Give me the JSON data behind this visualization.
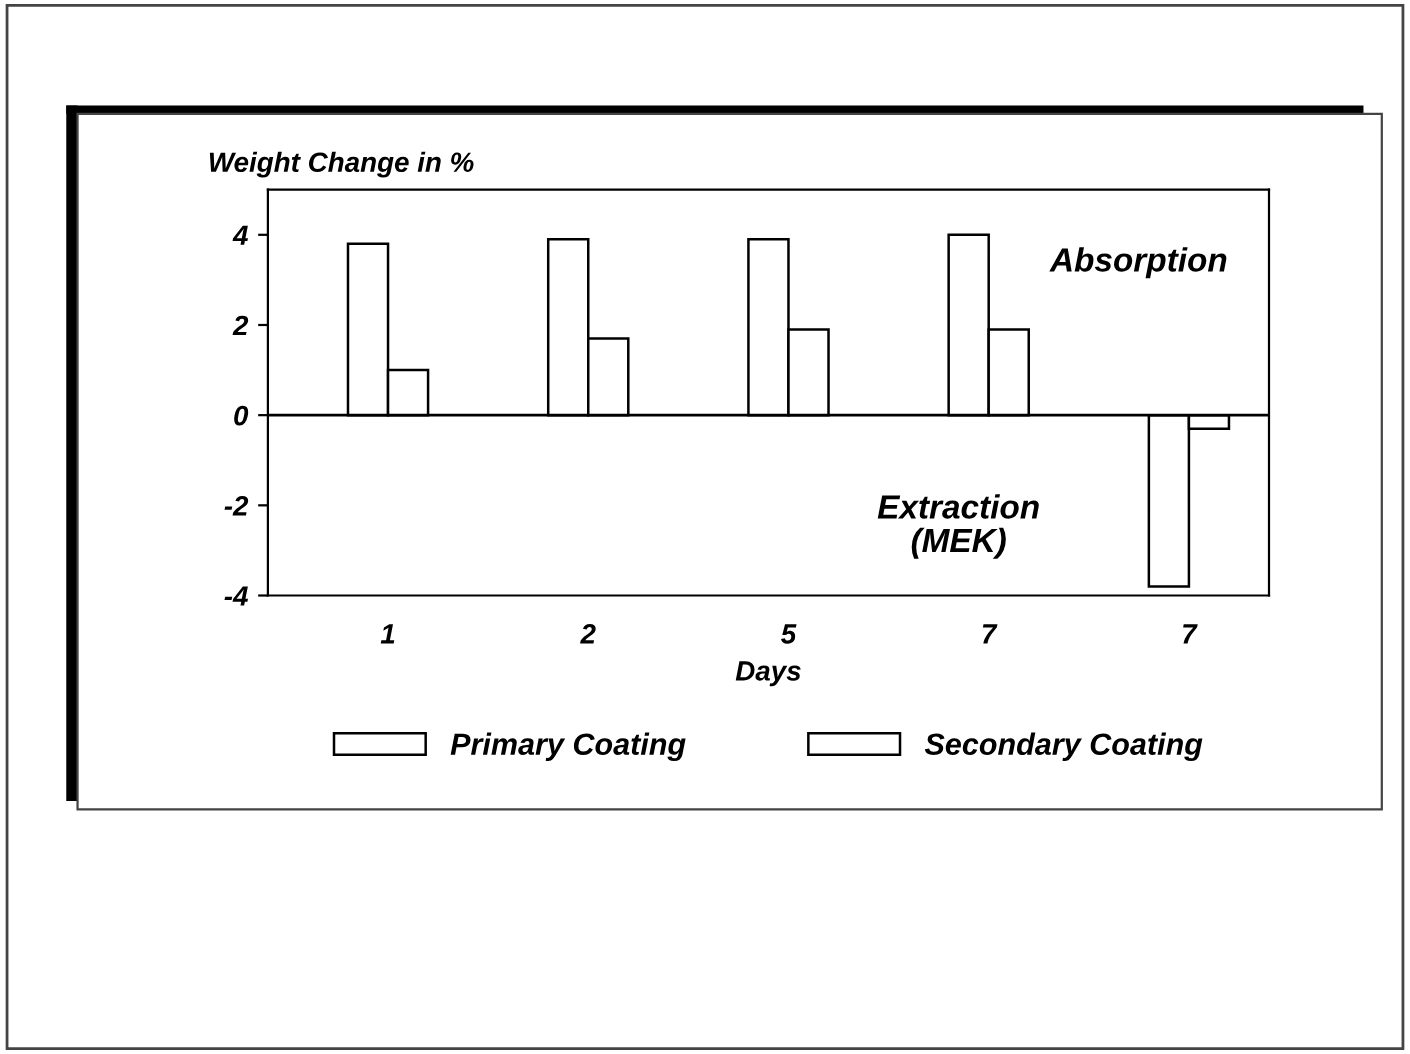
{
  "chart_data": {
    "type": "bar",
    "ylabel": "Weight Change in %",
    "xlabel": "Days",
    "categories": [
      "1",
      "2",
      "5",
      "7",
      "7"
    ],
    "series": [
      {
        "name": "Primary Coating",
        "color": "#ffffff",
        "values": [
          3.8,
          3.9,
          3.9,
          4.0,
          -3.8
        ]
      },
      {
        "name": "Secondary Coating",
        "color": "#ffffff",
        "values": [
          1.0,
          1.7,
          1.9,
          1.9,
          -0.3
        ]
      }
    ],
    "ylim": [
      -4,
      5
    ],
    "yticks": [
      -4,
      -2,
      0,
      2,
      4
    ],
    "annotations": [
      "Absorption",
      "Extraction\n(MEK)"
    ],
    "ref_lines": [
      {
        "axis": "y",
        "value": 0
      }
    ],
    "legend": "bottom",
    "grid": false
  }
}
